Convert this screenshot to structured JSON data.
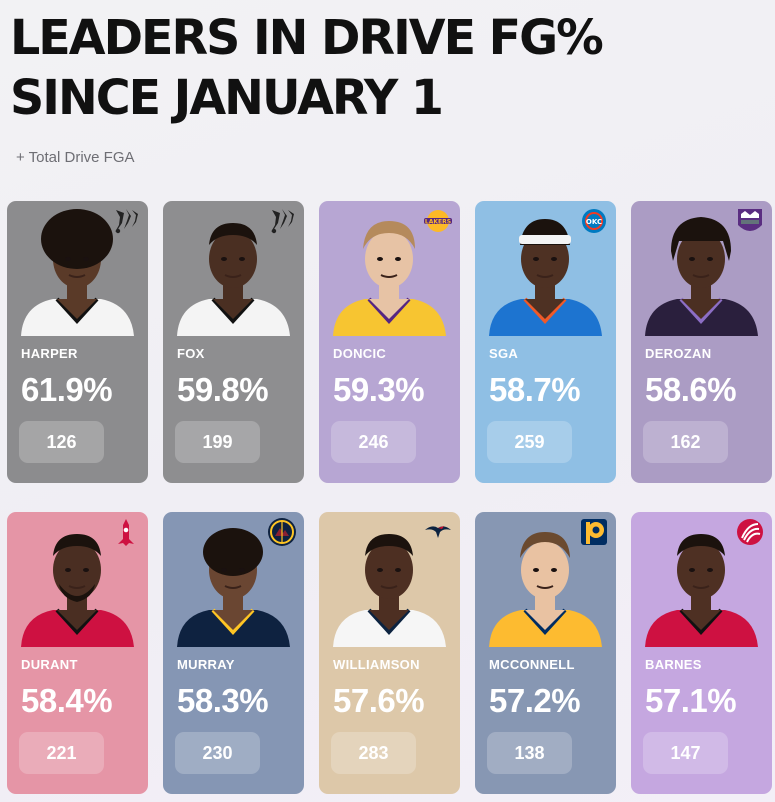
{
  "title": "LEADERS IN DRIVE FG%\nSINCE JANUARY 1",
  "subtitle": "+ Total Drive FGA",
  "players": [
    {
      "name": "HARPER",
      "pct": "61.9%",
      "fga": "126",
      "bg": "#8c8c8e",
      "team": "spurs",
      "skin": "#5a3a28",
      "jersey": "#f4f4f4",
      "trim": "#111111",
      "hair": "afro"
    },
    {
      "name": "FOX",
      "pct": "59.8%",
      "fga": "199",
      "bg": "#8e8e90",
      "team": "spurs",
      "skin": "#4a2f22",
      "jersey": "#f4f4f4",
      "trim": "#111111",
      "hair": "short"
    },
    {
      "name": "DONCIC",
      "pct": "59.3%",
      "fga": "246",
      "bg": "#b7a6d3",
      "team": "lakers",
      "skin": "#e7c3a5",
      "jersey": "#f7c531",
      "trim": "#552583",
      "hair": "light"
    },
    {
      "name": "SGA",
      "pct": "58.7%",
      "fga": "259",
      "bg": "#8fbfe4",
      "team": "thunder",
      "skin": "#4e3123",
      "jersey": "#1d74d0",
      "trim": "#f05a29",
      "hair": "headband"
    },
    {
      "name": "DEROZAN",
      "pct": "58.6%",
      "fga": "162",
      "bg": "#ab9cc4",
      "team": "kings",
      "skin": "#4b2f22",
      "jersey": "#2a1f3d",
      "trim": "#8c6ec5",
      "hair": "braids"
    },
    {
      "name": "DURANT",
      "pct": "58.4%",
      "fga": "221",
      "bg": "#e595a6",
      "team": "rockets",
      "skin": "#4a2e22",
      "jersey": "#ce1141",
      "trim": "#111111",
      "hair": "beard"
    },
    {
      "name": "MURRAY",
      "pct": "58.3%",
      "fga": "230",
      "bg": "#8596b4",
      "team": "nuggets",
      "skin": "#6a4632",
      "jersey": "#0e2240",
      "trim": "#fec524",
      "hair": "curly"
    },
    {
      "name": "WILLIAMSON",
      "pct": "57.6%",
      "fga": "283",
      "bg": "#ddc8a9",
      "team": "pelicans",
      "skin": "#4d2f22",
      "jersey": "#f6f6f6",
      "trim": "#0c2340",
      "hair": "short"
    },
    {
      "name": "MCCONNELL",
      "pct": "57.2%",
      "fga": "138",
      "bg": "#8797b3",
      "team": "pacers",
      "skin": "#e9c2a2",
      "jersey": "#fdbb30",
      "trim": "#002d62",
      "hair": "brown"
    },
    {
      "name": "BARNES",
      "pct": "57.1%",
      "fga": "147",
      "bg": "#c5a7e0",
      "team": "raptors",
      "skin": "#4e3023",
      "jersey": "#ce1141",
      "trim": "#111111",
      "hair": "short"
    }
  ]
}
